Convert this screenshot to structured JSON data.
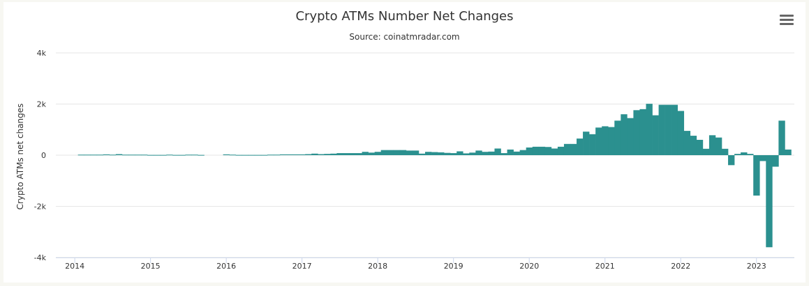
{
  "chart_data": {
    "type": "bar",
    "title": "Crypto ATMs Number Net Changes",
    "subtitle": "Source: coinatmradar.com",
    "xlabel": "",
    "ylabel": "Crypto ATMs net changes",
    "ylim": [
      -4000,
      4000
    ],
    "y_ticks": [
      {
        "value": 4000,
        "label": "4k"
      },
      {
        "value": 2000,
        "label": "2k"
      },
      {
        "value": 0,
        "label": "0"
      },
      {
        "value": -2000,
        "label": "-2k"
      },
      {
        "value": -4000,
        "label": "-4k"
      }
    ],
    "x_ticks": [
      "2014",
      "2015",
      "2016",
      "2017",
      "2018",
      "2019",
      "2020",
      "2021",
      "2022",
      "2023"
    ],
    "x_start": "2013-10",
    "x_end": "2023-07",
    "grid": true,
    "legend": "none",
    "bar_color": "#2b908f",
    "series": [
      {
        "name": "",
        "x": [
          "2014-02",
          "2014-03",
          "2014-04",
          "2014-05",
          "2014-06",
          "2014-07",
          "2014-08",
          "2014-09",
          "2014-10",
          "2014-11",
          "2014-12",
          "2015-01",
          "2015-02",
          "2015-03",
          "2015-04",
          "2015-05",
          "2015-06",
          "2015-07",
          "2015-08",
          "2015-09",
          "2015-10",
          "2015-11",
          "2015-12",
          "2016-01",
          "2016-02",
          "2016-03",
          "2016-04",
          "2016-05",
          "2016-06",
          "2016-07",
          "2016-08",
          "2016-09",
          "2016-10",
          "2016-11",
          "2016-12",
          "2017-01",
          "2017-02",
          "2017-03",
          "2017-04",
          "2017-05",
          "2017-06",
          "2017-07",
          "2017-08",
          "2017-09",
          "2017-10",
          "2017-11",
          "2017-12",
          "2018-01",
          "2018-02",
          "2018-03",
          "2018-04",
          "2018-05",
          "2018-06",
          "2018-07",
          "2018-08",
          "2018-09",
          "2018-10",
          "2018-11",
          "2018-12",
          "2019-01",
          "2019-02",
          "2019-03",
          "2019-04",
          "2019-05",
          "2019-06",
          "2019-07",
          "2019-08",
          "2019-09",
          "2019-10",
          "2019-11",
          "2019-12",
          "2020-01",
          "2020-02",
          "2020-03",
          "2020-04",
          "2020-05",
          "2020-06",
          "2020-07",
          "2020-08",
          "2020-09",
          "2020-10",
          "2020-11",
          "2020-12",
          "2021-01",
          "2021-02",
          "2021-03",
          "2021-04",
          "2021-05",
          "2021-06",
          "2021-07",
          "2021-08",
          "2021-09",
          "2021-10",
          "2021-11",
          "2021-12",
          "2022-01",
          "2022-02",
          "2022-03",
          "2022-04",
          "2022-05",
          "2022-06",
          "2022-07",
          "2022-08",
          "2022-09",
          "2022-10",
          "2022-11",
          "2022-12",
          "2023-01",
          "2023-02",
          "2023-03",
          "2023-04",
          "2023-05",
          "2023-06"
        ],
        "values": [
          20,
          20,
          20,
          20,
          30,
          20,
          40,
          20,
          20,
          20,
          20,
          10,
          10,
          10,
          20,
          10,
          10,
          20,
          20,
          10,
          0,
          0,
          0,
          30,
          20,
          10,
          10,
          10,
          10,
          10,
          20,
          20,
          30,
          30,
          30,
          30,
          40,
          60,
          40,
          50,
          60,
          80,
          80,
          80,
          80,
          130,
          100,
          130,
          200,
          200,
          200,
          200,
          180,
          180,
          60,
          130,
          120,
          110,
          90,
          80,
          150,
          70,
          100,
          180,
          130,
          140,
          260,
          80,
          220,
          140,
          200,
          300,
          330,
          330,
          320,
          260,
          330,
          440,
          440,
          650,
          920,
          820,
          1080,
          1130,
          1100,
          1350,
          1600,
          1450,
          1760,
          1800,
          2010,
          1560,
          1970,
          1970,
          1970,
          1730,
          950,
          760,
          600,
          250,
          780,
          690,
          250,
          -390,
          50,
          110,
          50,
          -1580,
          -230,
          -3600,
          -450,
          1350,
          220
        ]
      }
    ]
  }
}
